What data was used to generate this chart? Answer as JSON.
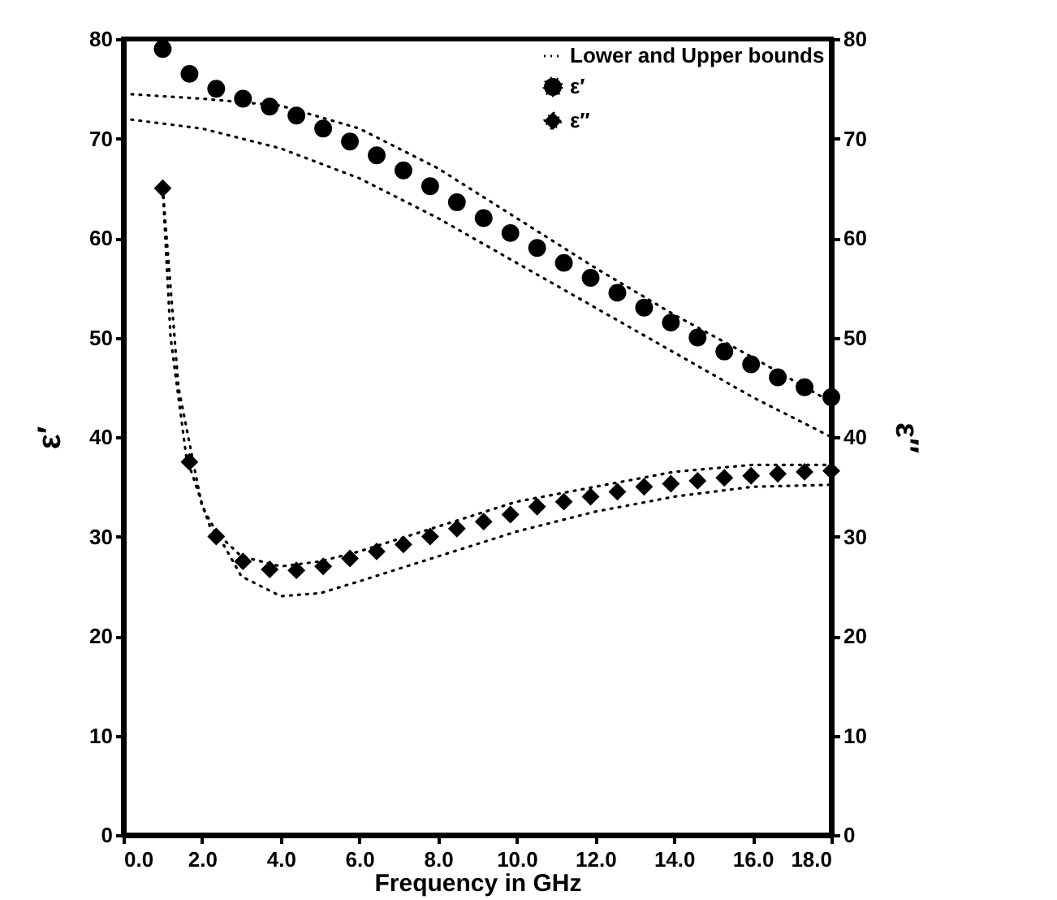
{
  "chart_data": {
    "type": "scatter",
    "xlabel": "Frequency in GHz",
    "ylabel": "ε′",
    "y2label": "ε″",
    "x": [
      1.0,
      1.68,
      2.36,
      3.04,
      3.72,
      4.4,
      5.08,
      5.76,
      6.44,
      7.12,
      7.8,
      8.48,
      9.16,
      9.84,
      10.52,
      11.2,
      11.88,
      12.56,
      13.24,
      13.92,
      14.6,
      15.28,
      15.96,
      16.64,
      17.32,
      18.0
    ],
    "series": [
      {
        "name": "Lower and Upper bounds",
        "type": "line",
        "line_style": "dotted",
        "marker": "none",
        "color": "#000000",
        "x": [
          0,
          2,
          4,
          6,
          8,
          10,
          12,
          14,
          16,
          18
        ],
        "values": [
          74.5,
          74,
          73.3,
          71,
          67,
          62,
          57,
          52.3,
          48,
          43.5
        ]
      },
      {
        "type": "line",
        "line_style": "dotted",
        "marker": "none",
        "color": "#000000",
        "x": [
          0,
          2,
          4,
          6,
          8,
          10,
          12,
          14,
          16,
          18
        ],
        "values": [
          72,
          71,
          69,
          66,
          62,
          57.5,
          53,
          48.5,
          44,
          40
        ]
      },
      {
        "type": "line",
        "line_style": "dotted",
        "marker": "none",
        "color": "#000000",
        "axis": "y2",
        "x": [
          1.0,
          1.2,
          1.6,
          2.2,
          3,
          4,
          5,
          6,
          8,
          10,
          12,
          14,
          16,
          18
        ],
        "values": [
          65,
          50,
          38,
          31,
          28,
          27,
          27.5,
          28.5,
          31,
          33.5,
          35,
          36.5,
          37.2,
          37.2
        ]
      },
      {
        "type": "line",
        "line_style": "dotted",
        "marker": "none",
        "color": "#000000",
        "axis": "y2",
        "x": [
          1.0,
          1.4,
          2,
          3,
          4,
          5,
          6,
          8,
          10,
          12,
          14,
          16,
          18
        ],
        "values": [
          65,
          45,
          33,
          26,
          24,
          24.3,
          25.5,
          28,
          30.5,
          32.5,
          34,
          35,
          35.2
        ]
      },
      {
        "name": "ε′",
        "marker": "circle",
        "color": "#000000",
        "values": [
          79,
          76.5,
          75,
          74,
          73.2,
          72.3,
          71,
          69.7,
          68.3,
          66.8,
          65.2,
          63.6,
          62,
          60.5,
          59,
          57.5,
          56,
          54.5,
          53,
          51.5,
          50,
          48.6,
          47.3,
          46,
          45,
          44
        ]
      },
      {
        "name": "ε″",
        "marker": "diamond",
        "color": "#000000",
        "axis": "y2",
        "values": [
          65,
          37.5,
          30,
          27.5,
          26.7,
          26.6,
          27,
          27.8,
          28.5,
          29.2,
          30,
          30.8,
          31.5,
          32.2,
          33,
          33.5,
          34,
          34.5,
          35,
          35.3,
          35.6,
          35.9,
          36.1,
          36.3,
          36.5,
          36.6
        ]
      }
    ],
    "xlim": [
      0,
      18
    ],
    "xticks": [
      {
        "value": 0,
        "label": "0.0"
      },
      {
        "value": 2,
        "label": "2.0"
      },
      {
        "value": 4,
        "label": "4.0"
      },
      {
        "value": 6,
        "label": "6.0"
      },
      {
        "value": 8,
        "label": "8.0"
      },
      {
        "value": 10,
        "label": "10.0"
      },
      {
        "value": 12,
        "label": "12.0"
      },
      {
        "value": 14,
        "label": "14.0"
      },
      {
        "value": 16,
        "label": "16.0"
      },
      {
        "value": 18,
        "label": "18.0"
      }
    ],
    "ylim": [
      0,
      80
    ],
    "yticks": [
      0,
      10,
      20,
      30,
      40,
      50,
      60,
      70,
      80
    ],
    "y2lim": [
      0,
      80
    ],
    "y2ticks": [
      0,
      10,
      20,
      30,
      40,
      50,
      60,
      70,
      80
    ],
    "grid": false,
    "legend": "top right"
  }
}
